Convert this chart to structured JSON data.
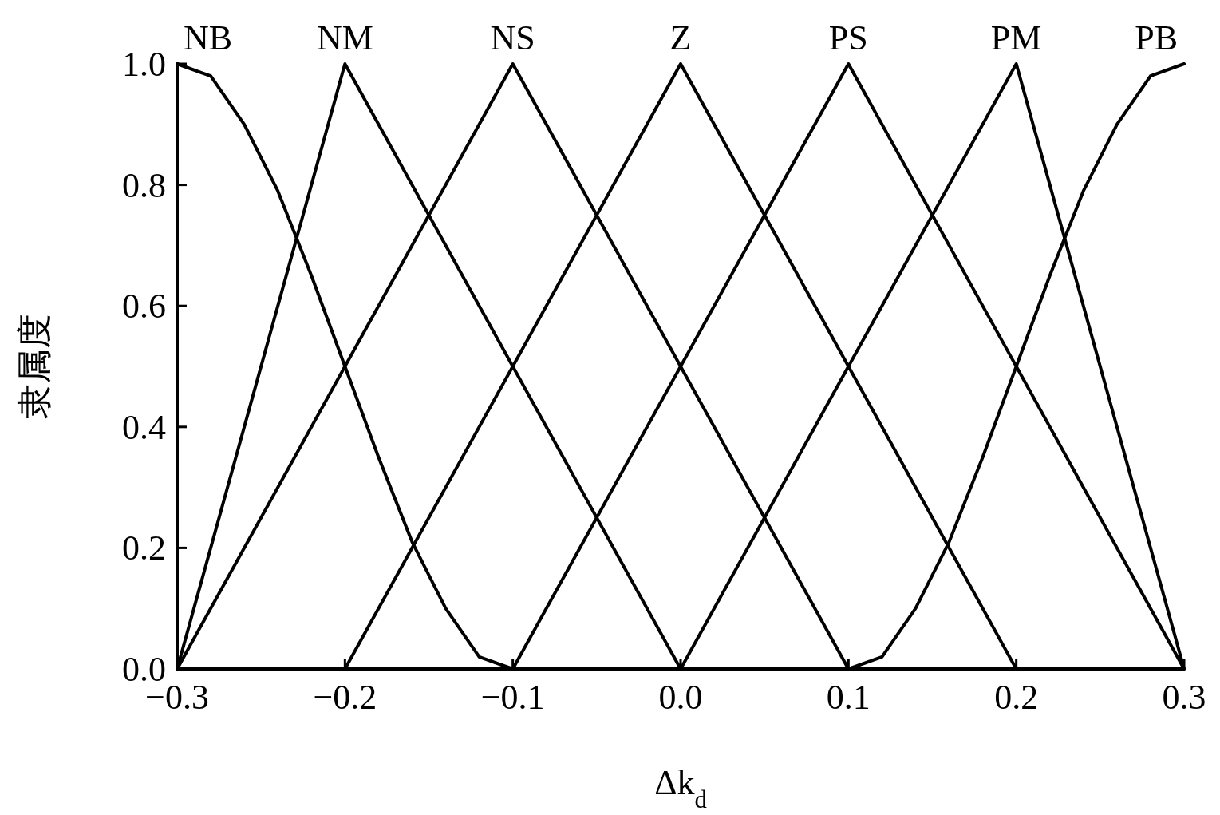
{
  "chart_data": {
    "type": "line",
    "xlabel": "Δk$_{d}$",
    "ylabel": "隶属度",
    "xlim": [
      -0.3,
      0.3
    ],
    "ylim": [
      0,
      1
    ],
    "xticks": [
      {
        "value": -0.3,
        "label": "−0.3"
      },
      {
        "value": -0.2,
        "label": "−0.2"
      },
      {
        "value": -0.1,
        "label": "−0.1"
      },
      {
        "value": 0,
        "label": "0.0"
      },
      {
        "value": 0.1,
        "label": "0.1"
      },
      {
        "value": 0.2,
        "label": "0.2"
      },
      {
        "value": 0.3,
        "label": "0.3"
      }
    ],
    "yticks": [
      {
        "value": 0,
        "label": "0.0"
      },
      {
        "value": 0.2,
        "label": "0.2"
      },
      {
        "value": 0.4,
        "label": "0.4"
      },
      {
        "value": 0.6,
        "label": "0.6"
      },
      {
        "value": 0.8,
        "label": "0.8"
      },
      {
        "value": 1,
        "label": "1.0"
      }
    ],
    "series": [
      {
        "name": "NB",
        "color": "#000000",
        "x": [
          -0.3,
          -0.28,
          -0.26,
          -0.24,
          -0.22,
          -0.2,
          -0.18,
          -0.16,
          -0.14,
          -0.12,
          -0.1
        ],
        "values": [
          1,
          0.98,
          0.9,
          0.79,
          0.65,
          0.5,
          0.35,
          0.21,
          0.1,
          0.02,
          0
        ]
      },
      {
        "name": "NM",
        "color": "#000000",
        "x": [
          -0.3,
          -0.2,
          0
        ],
        "values": [
          0,
          1,
          0
        ]
      },
      {
        "name": "NS",
        "color": "#000000",
        "x": [
          -0.3,
          -0.1,
          0.1
        ],
        "values": [
          0,
          1,
          0
        ]
      },
      {
        "name": "Z",
        "color": "#000000",
        "x": [
          -0.2,
          0,
          0.2
        ],
        "values": [
          0,
          1,
          0
        ]
      },
      {
        "name": "PS",
        "color": "#000000",
        "x": [
          -0.1,
          0.1,
          0.3
        ],
        "values": [
          0,
          1,
          0
        ]
      },
      {
        "name": "PM",
        "color": "#000000",
        "x": [
          0,
          0.2,
          0.3
        ],
        "values": [
          0,
          1,
          0
        ]
      },
      {
        "name": "PB",
        "color": "#000000",
        "x": [
          0.1,
          0.12,
          0.14,
          0.16,
          0.18,
          0.2,
          0.22,
          0.24,
          0.26,
          0.28,
          0.3
        ],
        "values": [
          0,
          0.02,
          0.1,
          0.21,
          0.35,
          0.5,
          0.65,
          0.79,
          0.9,
          0.98,
          1
        ]
      }
    ]
  }
}
